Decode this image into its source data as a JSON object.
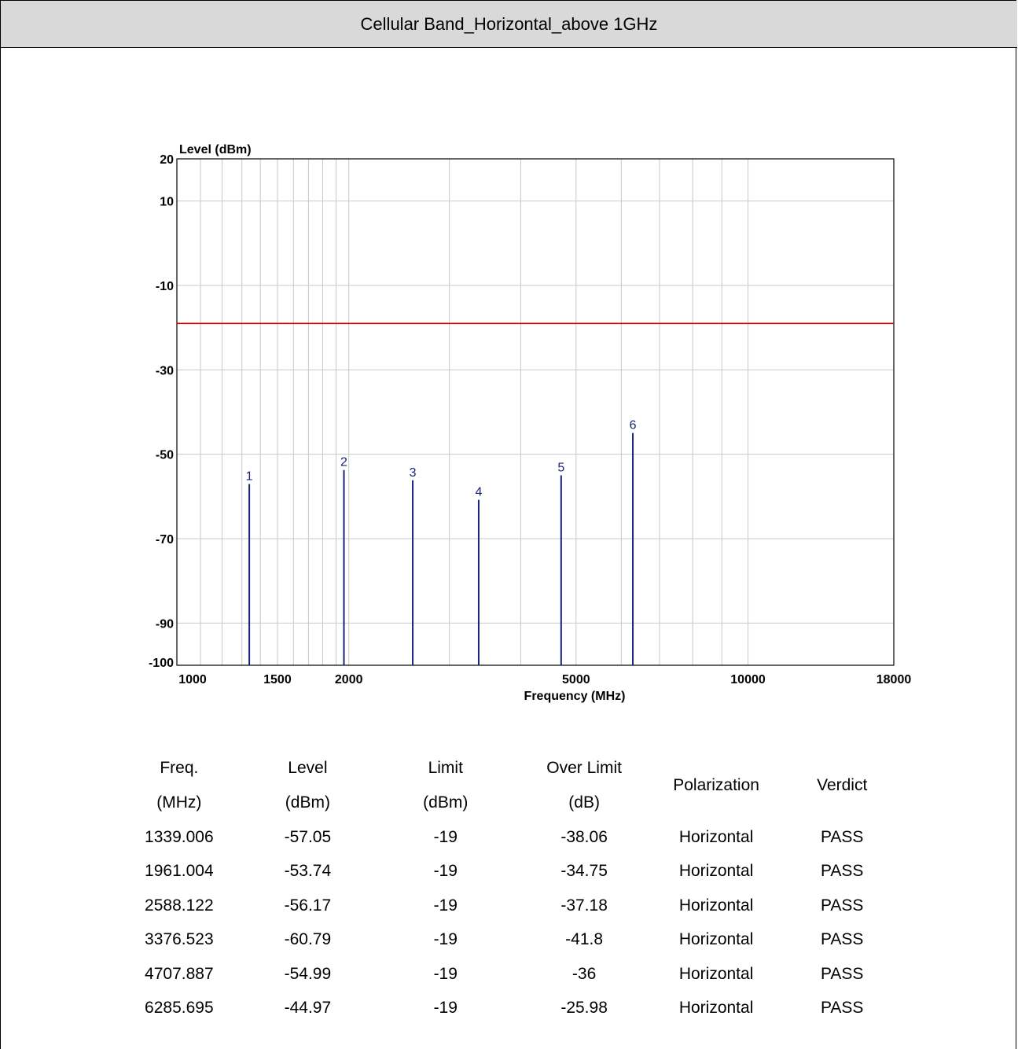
{
  "page": {
    "title": "Cellular Band_Horizontal_above 1GHz"
  },
  "chart_data": {
    "type": "bar",
    "ylabel": "Level (dBm)",
    "xlabel": "Frequency (MHz)",
    "x_scale": "log",
    "xlim": [
      1000,
      18000
    ],
    "ylim": [
      -100,
      20
    ],
    "y_ticks": [
      20,
      10,
      -10,
      -30,
      -50,
      -70,
      -90,
      -100
    ],
    "x_ticks": [
      1000,
      1500,
      2000,
      5000,
      10000,
      18000
    ],
    "limit_line": {
      "value": -19,
      "color": "#cc0000"
    },
    "grid": true,
    "marker_color": "#1a237e",
    "markers": [
      {
        "label": "1",
        "freq": 1339.006,
        "level": -57.05
      },
      {
        "label": "2",
        "freq": 1961.004,
        "level": -53.74
      },
      {
        "label": "3",
        "freq": 2588.122,
        "level": -56.17
      },
      {
        "label": "4",
        "freq": 3376.523,
        "level": -60.79
      },
      {
        "label": "5",
        "freq": 4707.887,
        "level": -54.99
      },
      {
        "label": "6",
        "freq": 6285.695,
        "level": -44.97
      }
    ]
  },
  "table": {
    "headers": [
      [
        "Freq.",
        "(MHz)"
      ],
      [
        "Level",
        "(dBm)"
      ],
      [
        "Limit",
        "(dBm)"
      ],
      [
        "Over Limit",
        "(dB)"
      ],
      [
        "Polarization"
      ],
      [
        "Verdict"
      ]
    ],
    "rows": [
      [
        "1339.006",
        "-57.05",
        "-19",
        "-38.06",
        "Horizontal",
        "PASS"
      ],
      [
        "1961.004",
        "-53.74",
        "-19",
        "-34.75",
        "Horizontal",
        "PASS"
      ],
      [
        "2588.122",
        "-56.17",
        "-19",
        "-37.18",
        "Horizontal",
        "PASS"
      ],
      [
        "3376.523",
        "-60.79",
        "-19",
        "-41.8",
        "Horizontal",
        "PASS"
      ],
      [
        "4707.887",
        "-54.99",
        "-19",
        "-36",
        "Horizontal",
        "PASS"
      ],
      [
        "6285.695",
        "-44.97",
        "-19",
        "-25.98",
        "Horizontal",
        "PASS"
      ]
    ]
  }
}
